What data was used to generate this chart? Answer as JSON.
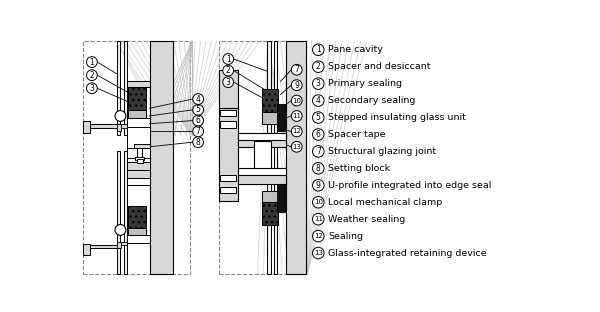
{
  "legend_items": [
    {
      "num": "1",
      "text": "Pane cavity"
    },
    {
      "num": "2",
      "text": "Spacer and desiccant"
    },
    {
      "num": "3",
      "text": "Primary sealing"
    },
    {
      "num": "4",
      "text": "Secondary sealing"
    },
    {
      "num": "5",
      "text": "Stepped insulating glass unit"
    },
    {
      "num": "6",
      "text": "Spacer tape"
    },
    {
      "num": "7",
      "text": "Structural glazing joint"
    },
    {
      "num": "8",
      "text": "Setting block"
    },
    {
      "num": "9",
      "text": "U-profile integrated into edge seal"
    },
    {
      "num": "10",
      "text": "Local mechanical clamp"
    },
    {
      "num": "11",
      "text": "Weather sealing"
    },
    {
      "num": "12",
      "text": "Sealing"
    },
    {
      "num": "13",
      "text": "Glass-integrated retaining device"
    }
  ],
  "bg_color": "#ffffff",
  "lc": "#000000",
  "gray_light": "#d8d8d8",
  "gray_med": "#aaaaaa",
  "gray_dark": "#444444",
  "desiccant_color": "#383838",
  "sealant_color": "#c0c0c0"
}
